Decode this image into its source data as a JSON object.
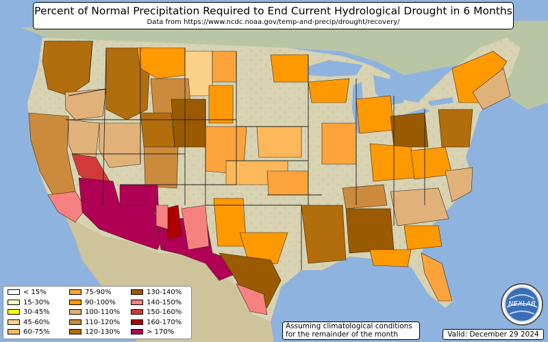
{
  "title": "Percent of Normal Precipitation Required to End Current Hydrological Drought in 6 Months",
  "subtitle": "Data from https://www.ncdc.noaa.gov/temp-and-precip/drought/recovery/",
  "legend": [
    {
      "label": "< 15%",
      "color": "#ffffff"
    },
    {
      "label": "15-30%",
      "color": "#ffffc0"
    },
    {
      "label": "30-45%",
      "color": "#ffff00"
    },
    {
      "label": "45-60%",
      "color": "#fcd28b"
    },
    {
      "label": "60-75%",
      "color": "#fdb85a"
    },
    {
      "label": "75-90%",
      "color": "#fca33c"
    },
    {
      "label": "90-100%",
      "color": "#ff9900"
    },
    {
      "label": "100-110%",
      "color": "#e0b27a"
    },
    {
      "label": "110-120%",
      "color": "#cc8a3c"
    },
    {
      "label": "120-130%",
      "color": "#b26d0c"
    },
    {
      "label": "130-140%",
      "color": "#9a5a00"
    },
    {
      "label": "140-150%",
      "color": "#f78080"
    },
    {
      "label": "150-160%",
      "color": "#d23a3a"
    },
    {
      "label": "160-170%",
      "color": "#b00000"
    },
    {
      "label": "> 170%",
      "color": "#b00055"
    }
  ],
  "note": [
    "Assuming climatological conditions",
    "for the remainder of the month"
  ],
  "valid": "Valid: December 29 2024",
  "logo_text": "NEXLAB",
  "colors": {
    "ocean": "#8fb3df",
    "land": "#d8d2b0",
    "canada": "#b9c6a5",
    "mexico": "#cfc39c"
  }
}
